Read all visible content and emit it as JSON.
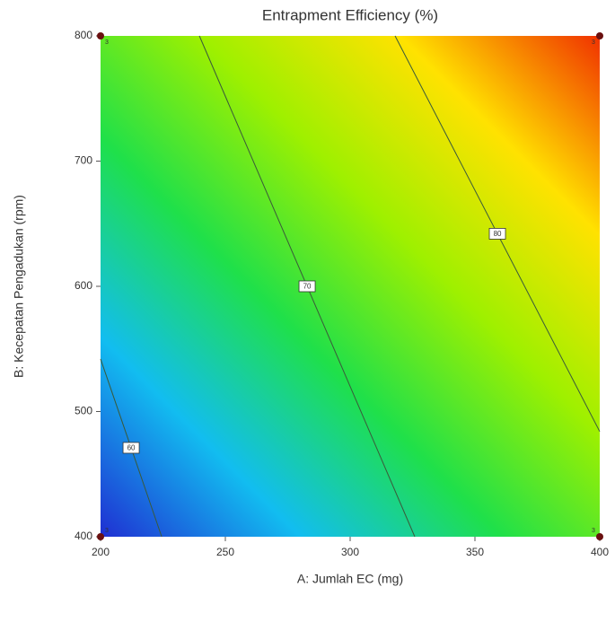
{
  "chart_data": {
    "type": "contour",
    "title": "Entrapment Efficiency (%)",
    "x_label": "A: Jumlah EC (mg)",
    "y_label": "B: Kecepatan Pengadukan (rpm)",
    "xlim": [
      200,
      400
    ],
    "ylim": [
      400,
      800
    ],
    "xticks": [
      200,
      250,
      300,
      350,
      400
    ],
    "yticks": [
      400,
      500,
      600,
      700,
      800
    ],
    "colormap": [
      "#1f2fd2",
      "#12bdf0",
      "#1fe04a",
      "#9ef000",
      "#ffe200",
      "#f03200"
    ],
    "line_color": "#3a5a3a",
    "contours": [
      {
        "level": 60,
        "x": [
          200,
          224.5
        ],
        "y": [
          542,
          400
        ]
      },
      {
        "level": 70,
        "x": [
          239.6,
          325.9
        ],
        "y": [
          800,
          400
        ]
      },
      {
        "level": 80,
        "x": [
          318,
          400
        ],
        "y": [
          800,
          484
        ]
      }
    ],
    "design_points": {
      "x": [
        200,
        200,
        400,
        400
      ],
      "y": [
        400,
        800,
        400,
        800
      ],
      "replicates": [
        3,
        3,
        3,
        3
      ],
      "color": "#6a1010"
    }
  }
}
